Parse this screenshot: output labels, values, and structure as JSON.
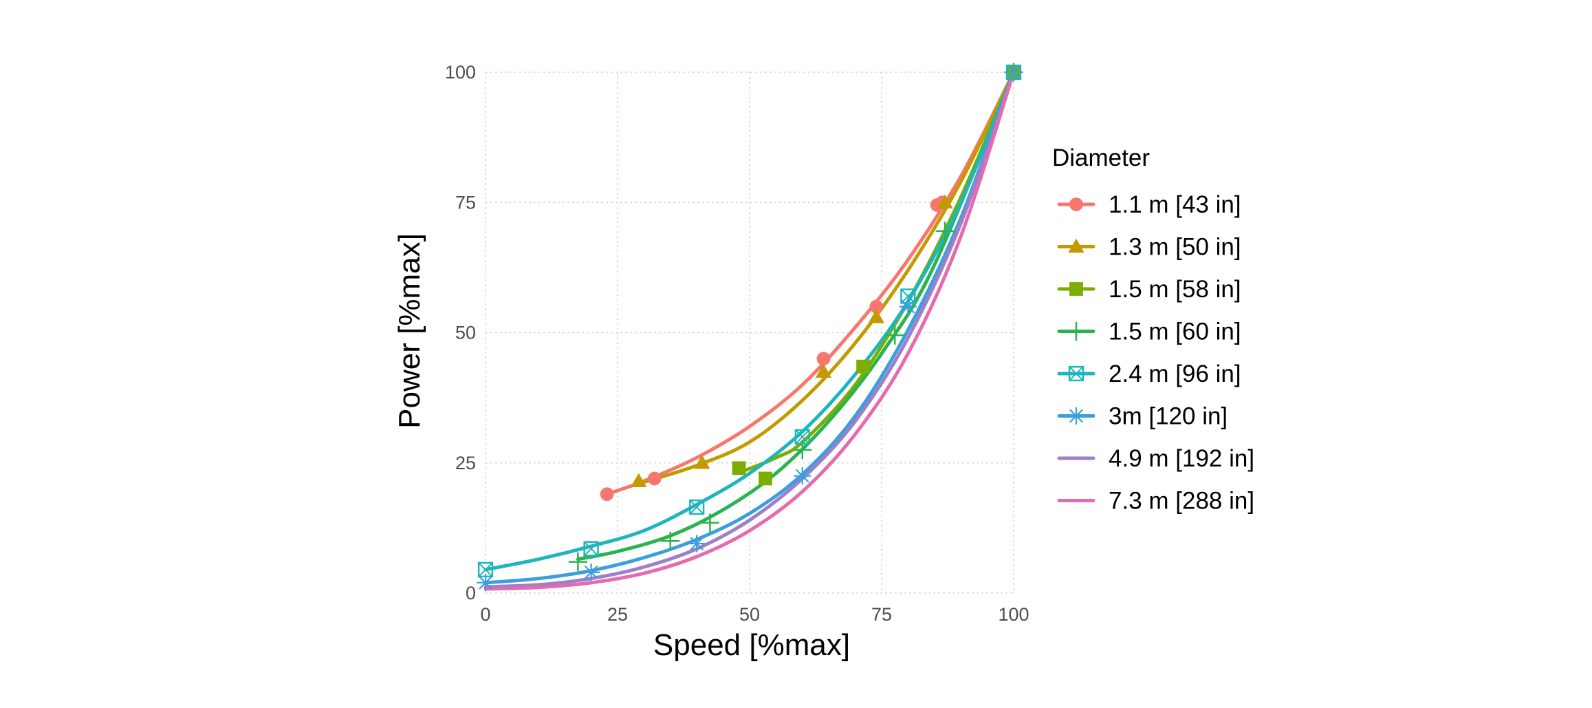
{
  "chart_data": {
    "type": "line",
    "title": "",
    "xlabel": "Speed [%max]",
    "ylabel": "Power [%max]",
    "xlim": [
      0,
      100
    ],
    "ylim": [
      0,
      100
    ],
    "xticks": [
      0,
      25,
      50,
      75,
      100
    ],
    "yticks": [
      0,
      25,
      50,
      75,
      100
    ],
    "grid": true,
    "legend": {
      "title": "Diameter",
      "position": "right"
    },
    "series": [
      {
        "name": "1.1 m [43 in]",
        "color": "#F8766D",
        "marker": "circle",
        "points": [
          [
            23,
            19
          ],
          [
            32,
            22
          ],
          [
            64,
            45
          ],
          [
            74,
            55
          ],
          [
            85.5,
            74.5
          ],
          [
            86.5,
            75
          ],
          [
            100,
            100
          ]
        ],
        "curve": [
          [
            23,
            19
          ],
          [
            30,
            21.5
          ],
          [
            40,
            26
          ],
          [
            50,
            32
          ],
          [
            60,
            40
          ],
          [
            70,
            51
          ],
          [
            80,
            64
          ],
          [
            90,
            80
          ],
          [
            100,
            100
          ]
        ]
      },
      {
        "name": "1.3 m [50 in]",
        "color": "#C49A00",
        "marker": "triangle",
        "points": [
          [
            29,
            21.5
          ],
          [
            41,
            25
          ],
          [
            64,
            42.5
          ],
          [
            74,
            53
          ],
          [
            87,
            75
          ],
          [
            100,
            100
          ]
        ],
        "curve": [
          [
            29,
            21
          ],
          [
            40,
            24.5
          ],
          [
            50,
            29
          ],
          [
            60,
            37
          ],
          [
            70,
            48
          ],
          [
            80,
            62
          ],
          [
            90,
            79
          ],
          [
            100,
            100
          ]
        ]
      },
      {
        "name": "1.5 m [58 in]",
        "color": "#7CAE00",
        "marker": "square",
        "points": [
          [
            48,
            24
          ],
          [
            53,
            22
          ],
          [
            71.5,
            43.5
          ],
          [
            100,
            100
          ]
        ],
        "curve": [
          [
            49,
            23.5
          ],
          [
            55,
            26
          ],
          [
            60,
            29
          ],
          [
            70,
            40
          ],
          [
            80,
            56
          ],
          [
            90,
            76
          ],
          [
            100,
            100
          ]
        ]
      },
      {
        "name": "1.5 m [60 in]",
        "color": "#2AB34E",
        "marker": "plus",
        "points": [
          [
            17.5,
            6
          ],
          [
            35,
            10
          ],
          [
            42.5,
            13.5
          ],
          [
            60,
            27.5
          ],
          [
            77.5,
            49.5
          ],
          [
            87,
            69.5
          ],
          [
            100,
            100
          ]
        ],
        "curve": [
          [
            17.5,
            6.5
          ],
          [
            25,
            8
          ],
          [
            35,
            11
          ],
          [
            45,
            16
          ],
          [
            55,
            23
          ],
          [
            65,
            33
          ],
          [
            75,
            46
          ],
          [
            85,
            63
          ],
          [
            100,
            100
          ]
        ]
      },
      {
        "name": "2.4 m [96 in]",
        "color": "#1DB6BC",
        "marker": "square-cross",
        "points": [
          [
            0,
            4.5
          ],
          [
            20,
            8.5
          ],
          [
            40,
            16.5
          ],
          [
            60,
            30
          ],
          [
            80,
            57
          ],
          [
            100,
            100
          ]
        ],
        "curve": [
          [
            0,
            4.5
          ],
          [
            10,
            6.5
          ],
          [
            20,
            9
          ],
          [
            30,
            12
          ],
          [
            40,
            17
          ],
          [
            50,
            23
          ],
          [
            60,
            31
          ],
          [
            70,
            42
          ],
          [
            80,
            56
          ],
          [
            90,
            75
          ],
          [
            100,
            100
          ]
        ]
      },
      {
        "name": "3m [120 in]",
        "color": "#3A9FDC",
        "marker": "asterisk",
        "points": [
          [
            0,
            2
          ],
          [
            20,
            4
          ],
          [
            40,
            9.5
          ],
          [
            60,
            22.5
          ],
          [
            80,
            55
          ],
          [
            100,
            100
          ]
        ],
        "curve": [
          [
            0,
            2
          ],
          [
            10,
            2.8
          ],
          [
            20,
            4.3
          ],
          [
            30,
            6.8
          ],
          [
            40,
            10.3
          ],
          [
            50,
            15.3
          ],
          [
            60,
            22.8
          ],
          [
            70,
            34
          ],
          [
            80,
            50.5
          ],
          [
            90,
            72
          ],
          [
            100,
            100
          ]
        ]
      },
      {
        "name": "4.9 m [192 in]",
        "color": "#9E7FC8",
        "marker": "none",
        "points": [],
        "curve": [
          [
            0,
            1.2
          ],
          [
            10,
            1.6
          ],
          [
            20,
            2.8
          ],
          [
            30,
            5
          ],
          [
            40,
            8.5
          ],
          [
            50,
            14
          ],
          [
            60,
            22
          ],
          [
            70,
            33
          ],
          [
            80,
            49
          ],
          [
            90,
            71
          ],
          [
            100,
            100
          ]
        ]
      },
      {
        "name": "7.3 m [288 in]",
        "color": "#E56BB0",
        "marker": "none",
        "points": [],
        "curve": [
          [
            0,
            0.8
          ],
          [
            10,
            1.1
          ],
          [
            20,
            2
          ],
          [
            30,
            3.8
          ],
          [
            40,
            7
          ],
          [
            50,
            12
          ],
          [
            60,
            19.5
          ],
          [
            70,
            30.5
          ],
          [
            80,
            46
          ],
          [
            90,
            68.5
          ],
          [
            100,
            100
          ]
        ]
      }
    ]
  }
}
